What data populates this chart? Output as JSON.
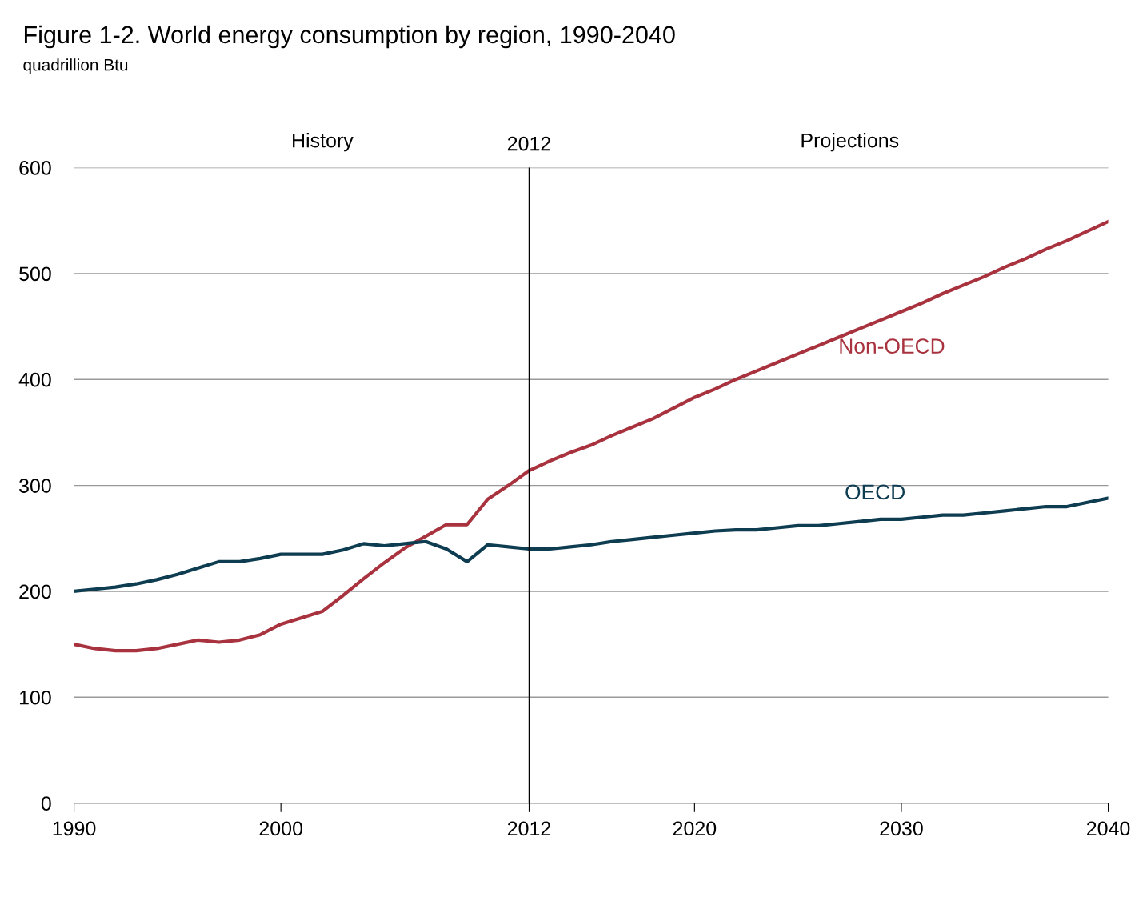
{
  "chart_data": {
    "type": "line",
    "title": "Figure 1-2. World energy consumption by region, 1990-2040",
    "subtitle": "quadrillion Btu",
    "x": [
      1990,
      1991,
      1992,
      1993,
      1994,
      1995,
      1996,
      1997,
      1998,
      1999,
      2000,
      2001,
      2002,
      2003,
      2004,
      2005,
      2006,
      2007,
      2008,
      2009,
      2010,
      2011,
      2012,
      2013,
      2014,
      2015,
      2016,
      2017,
      2018,
      2019,
      2020,
      2021,
      2022,
      2023,
      2024,
      2025,
      2026,
      2027,
      2028,
      2029,
      2030,
      2031,
      2032,
      2033,
      2034,
      2035,
      2036,
      2037,
      2038,
      2039,
      2040
    ],
    "series": [
      {
        "name": "Non-OECD",
        "color": "#a8323e",
        "values": [
          150,
          146,
          144,
          144,
          146,
          150,
          154,
          152,
          154,
          159,
          169,
          175,
          181,
          196,
          212,
          227,
          241,
          252,
          263,
          263,
          287,
          300,
          314,
          323,
          331,
          338,
          347,
          355,
          363,
          373,
          383,
          391,
          400,
          408,
          416,
          424,
          432,
          440,
          448,
          456,
          464,
          472,
          481,
          489,
          497,
          506,
          514,
          523,
          531,
          540,
          549
        ]
      },
      {
        "name": "OECD",
        "color": "#0e3d52",
        "values": [
          200,
          202,
          204,
          207,
          211,
          216,
          222,
          228,
          228,
          231,
          235,
          235,
          235,
          239,
          245,
          243,
          245,
          247,
          240,
          228,
          244,
          242,
          240,
          240,
          242,
          244,
          247,
          249,
          251,
          253,
          255,
          257,
          258,
          258,
          260,
          262,
          262,
          264,
          266,
          268,
          268,
          270,
          272,
          272,
          274,
          276,
          278,
          280,
          280,
          284,
          288
        ]
      }
    ],
    "xlim": [
      1990,
      2040
    ],
    "xticks": [
      1990,
      2000,
      2012,
      2020,
      2030,
      2040
    ],
    "ylim": [
      0,
      600
    ],
    "yticks": [
      0,
      100,
      200,
      300,
      400,
      500,
      600
    ],
    "grid": "y",
    "legend": false,
    "marker": "none",
    "line_style": "solid",
    "ref_lines": [
      {
        "axis": "x",
        "value": 2012,
        "label": "2012",
        "color": "#000000"
      }
    ],
    "annotations": [
      "History",
      "Projections"
    ]
  }
}
